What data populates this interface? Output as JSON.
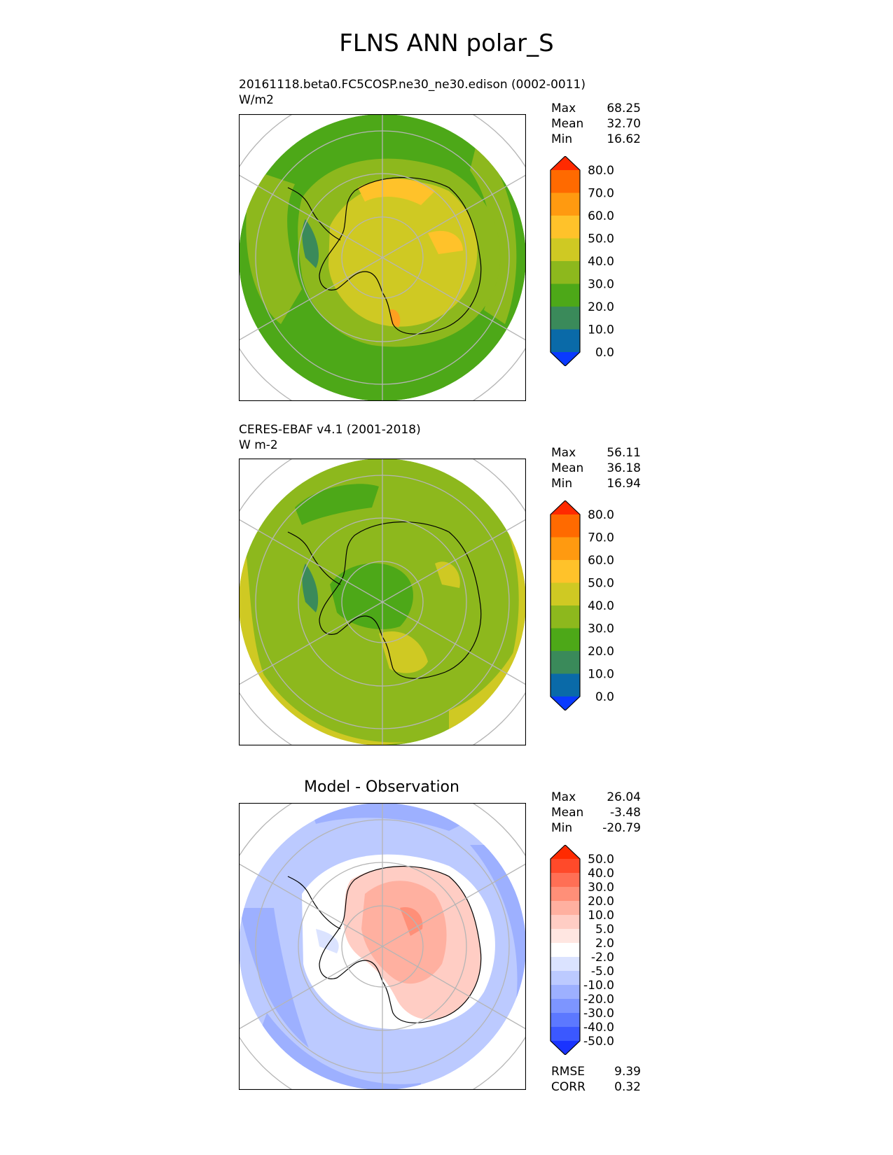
{
  "title": "FLNS ANN polar_S",
  "colors": {
    "ocean_model": "#4da818",
    "ocean_obs": "#8db81d",
    "coast": "#000000",
    "grid": "#b5b5b5"
  },
  "panels": [
    {
      "id": "model",
      "title_line1": "20161118.beta0.FC5COSP.ne30_ne30.edison (0002-0011)",
      "title_line2": "W/m2",
      "stats": [
        {
          "label": "Max",
          "value": "68.25"
        },
        {
          "label": "Mean",
          "value": "32.70"
        },
        {
          "label": "Min",
          "value": "16.62"
        }
      ],
      "colorbar": {
        "labels": [
          "80.0",
          "70.0",
          "60.0",
          "50.0",
          "40.0",
          "30.0",
          "20.0",
          "10.0",
          "0.0"
        ],
        "colors": [
          "#ff2a00",
          "#ff6a00",
          "#ff9a10",
          "#ffc22a",
          "#cfc923",
          "#8db81d",
          "#4da818",
          "#3a8a5a",
          "#0a6aa8",
          "#0a3aff"
        ]
      }
    },
    {
      "id": "obs",
      "title_line1": "CERES-EBAF v4.1 (2001-2018)",
      "title_line2": "W m-2",
      "stats": [
        {
          "label": "Max",
          "value": "56.11"
        },
        {
          "label": "Mean",
          "value": "36.18"
        },
        {
          "label": "Min",
          "value": "16.94"
        }
      ],
      "colorbar": {
        "labels": [
          "80.0",
          "70.0",
          "60.0",
          "50.0",
          "40.0",
          "30.0",
          "20.0",
          "10.0",
          "0.0"
        ],
        "colors": [
          "#ff2a00",
          "#ff6a00",
          "#ff9a10",
          "#ffc22a",
          "#cfc923",
          "#8db81d",
          "#4da818",
          "#3a8a5a",
          "#0a6aa8",
          "#0a3aff"
        ]
      }
    },
    {
      "id": "diff",
      "title": "Model - Observation",
      "stats": [
        {
          "label": "Max",
          "value": "26.04"
        },
        {
          "label": "Mean",
          "value": "-3.48"
        },
        {
          "label": "Min",
          "value": "-20.79"
        }
      ],
      "extra_stats": [
        {
          "label": "RMSE",
          "value": "9.39"
        },
        {
          "label": "CORR",
          "value": "0.32"
        }
      ],
      "colorbar": {
        "labels": [
          "50.0",
          "40.0",
          "30.0",
          "20.0",
          "10.0",
          "5.0",
          "2.0",
          "-2.0",
          "-5.0",
          "-10.0",
          "-20.0",
          "-30.0",
          "-40.0",
          "-50.0"
        ],
        "colors": [
          "#ff2a00",
          "#ff4a2a",
          "#ff6f55",
          "#ff8f78",
          "#ffb0a0",
          "#ffcdc4",
          "#ffe6e1",
          "#ffffff",
          "#dbe3ff",
          "#bccaff",
          "#9db0ff",
          "#7d95ff",
          "#5c78ff",
          "#3b58ff",
          "#1a34ff"
        ]
      }
    }
  ],
  "chart_data": [
    {
      "type": "heatmap",
      "title": "20161118.beta0.FC5COSP.ne30_ne30.edison (0002-0011)",
      "units": "W/m2",
      "projection": "south polar stereographic",
      "max": 68.25,
      "mean": 32.7,
      "min": 16.62,
      "levels": [
        0,
        10,
        20,
        30,
        40,
        50,
        60,
        70,
        80
      ],
      "grid": true
    },
    {
      "type": "heatmap",
      "title": "CERES-EBAF v4.1 (2001-2018)",
      "units": "W m-2",
      "projection": "south polar stereographic",
      "max": 56.11,
      "mean": 36.18,
      "min": 16.94,
      "levels": [
        0,
        10,
        20,
        30,
        40,
        50,
        60,
        70,
        80
      ],
      "grid": true
    },
    {
      "type": "heatmap",
      "title": "Model - Observation",
      "projection": "south polar stereographic",
      "max": 26.04,
      "mean": -3.48,
      "min": -20.79,
      "rmse": 9.39,
      "corr": 0.32,
      "levels": [
        -50,
        -40,
        -30,
        -20,
        -10,
        -5,
        -2,
        2,
        5,
        10,
        20,
        30,
        40,
        50
      ],
      "grid": true
    }
  ]
}
